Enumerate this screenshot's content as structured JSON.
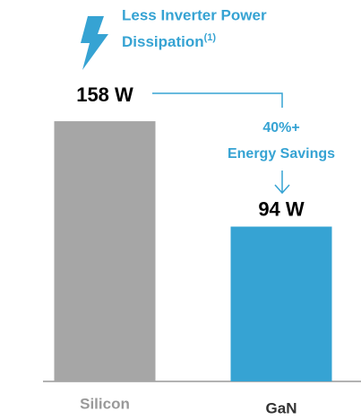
{
  "chart_data": {
    "type": "bar",
    "title": [
      "Less Inverter Power",
      "Dissipation"
    ],
    "title_note": "(1)",
    "annotation": [
      "40%+",
      "Energy Savings"
    ],
    "categories": [
      "Silicon",
      "GaN"
    ],
    "values": [
      158,
      94
    ],
    "value_labels": [
      "158 W",
      "94 W"
    ],
    "colors": [
      "#a6a6a6",
      "#36a3d3"
    ],
    "accent_color": "#36a3d3"
  }
}
